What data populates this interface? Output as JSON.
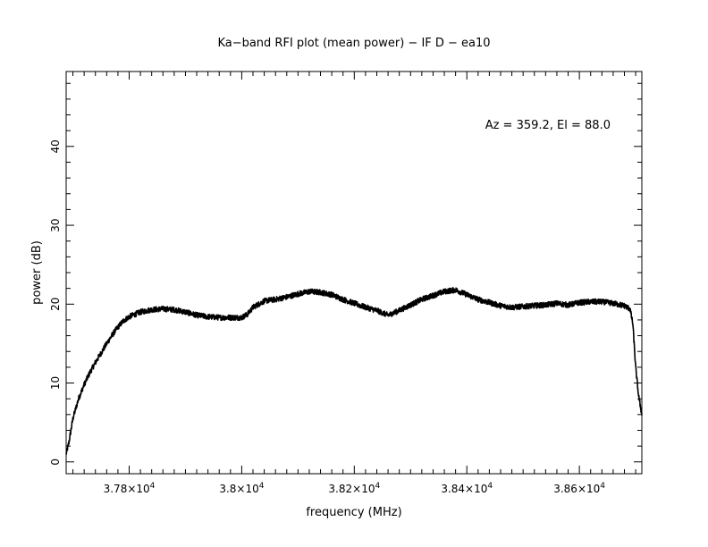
{
  "chart_data": {
    "type": "line",
    "title": "Ka−band RFI plot (mean power) − IF D − ea10",
    "xlabel": "frequency (MHz)",
    "ylabel": "power (dB)",
    "annotation": "Az = 359.2, El = 88.0",
    "xlim": [
      37688,
      38711
    ],
    "ylim": [
      -1.5,
      49.5
    ],
    "x_ticks": [
      {
        "mantissa": "3.78",
        "exp": "4",
        "value": 37800
      },
      {
        "mantissa": "3.8",
        "exp": "4",
        "value": 38000
      },
      {
        "mantissa": "3.82",
        "exp": "4",
        "value": 38200
      },
      {
        "mantissa": "3.84",
        "exp": "4",
        "value": 38400
      },
      {
        "mantissa": "3.86",
        "exp": "4",
        "value": 38600
      }
    ],
    "y_ticks": [
      {
        "label": "0",
        "value": 0
      },
      {
        "label": "10",
        "value": 10
      },
      {
        "label": "20",
        "value": 20
      },
      {
        "label": "30",
        "value": 30
      },
      {
        "label": "40",
        "value": 40
      }
    ],
    "grid": false,
    "line_color": "#000000",
    "series": [
      {
        "x": [
          37688,
          37693,
          37700,
          37710,
          37720,
          37730,
          37740,
          37750,
          37760,
          37770,
          37780,
          37790,
          37800,
          37820,
          37840,
          37860,
          37880,
          37900,
          37920,
          37940,
          37960,
          37980,
          38000,
          38010,
          38020,
          38040,
          38060,
          38080,
          38100,
          38120,
          38140,
          38160,
          38180,
          38200,
          38220,
          38240,
          38260,
          38280,
          38300,
          38320,
          38340,
          38360,
          38380,
          38400,
          38420,
          38440,
          38460,
          38480,
          38500,
          38520,
          38540,
          38560,
          38580,
          38600,
          38620,
          38640,
          38660,
          38680,
          38690,
          38695,
          38700,
          38705,
          38711
        ],
        "y": [
          1.0,
          2.5,
          5.5,
          8.0,
          9.8,
          11.3,
          12.6,
          13.8,
          15.0,
          16.1,
          17.1,
          17.9,
          18.4,
          19.0,
          19.3,
          19.4,
          19.3,
          19.0,
          18.6,
          18.4,
          18.3,
          18.3,
          18.3,
          18.7,
          19.6,
          20.4,
          20.6,
          20.9,
          21.3,
          21.6,
          21.5,
          21.2,
          20.6,
          20.1,
          19.6,
          19.2,
          18.6,
          19.2,
          19.9,
          20.6,
          21.1,
          21.6,
          21.8,
          21.2,
          20.6,
          20.2,
          19.8,
          19.6,
          19.7,
          19.8,
          19.9,
          20.1,
          19.9,
          20.2,
          20.3,
          20.3,
          20.1,
          19.8,
          19.4,
          17.5,
          12.0,
          8.5,
          6.0
        ]
      }
    ]
  }
}
